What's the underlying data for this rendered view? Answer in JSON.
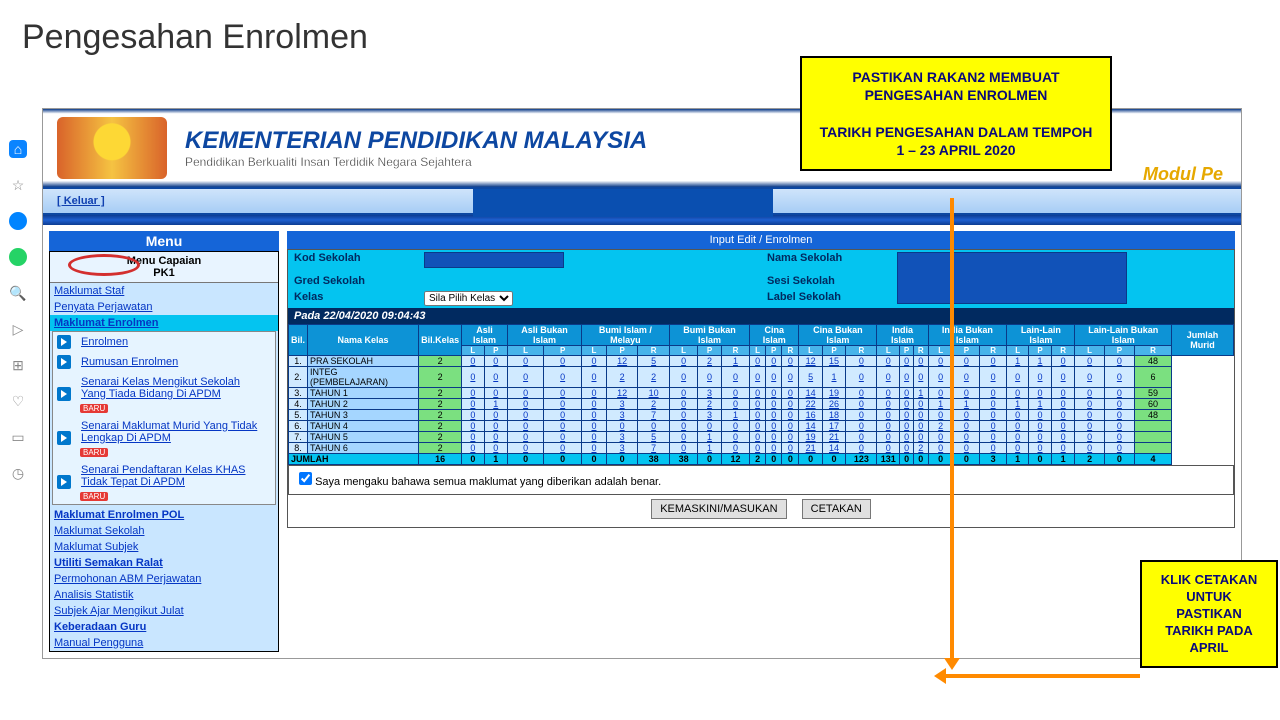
{
  "slide_title": "Pengesahan Enrolmen",
  "banner": {
    "title": "KEMENTERIAN PENDIDIKAN MALAYSIA",
    "subtitle": "Pendidikan Berkualiti Insan Terdidik Negara Sejahtera",
    "module": "Modul Pe"
  },
  "topbar": {
    "keluar": "[ Keluar ]"
  },
  "menu": {
    "title": "Menu",
    "caption": "Menu Capaian\nPK1",
    "items": [
      "Maklumat Staf",
      "Penyata Perjawatan"
    ],
    "group_enrolmen": "Maklumat Enrolmen",
    "sub_enrolmen": [
      "Enrolmen",
      "Rumusan Enrolmen",
      "Senarai Kelas Mengikut Sekolah Yang Tiada Bidang Di APDM",
      "Senarai Maklumat Murid Yang Tidak Lengkap Di APDM",
      "Senarai Pendaftaran Kelas KHAS Tidak Tepat Di APDM"
    ],
    "baru": "BARU",
    "group_pol": [
      "Maklumat Enrolmen POL",
      "Maklumat Sekolah",
      "Maklumat Subjek",
      "Utiliti Semakan Ralat",
      "Permohonan ABM Perjawatan",
      "Analisis Statistik",
      "Subjek Ajar Mengikut Julat",
      "Keberadaan Guru",
      "Manual Pengguna"
    ]
  },
  "panel": {
    "title": "Input Edit / Enrolmen",
    "labels": {
      "kod": "Kod Sekolah",
      "gred": "Gred Sekolah",
      "kelas": "Kelas",
      "kelas_opt": "Sila Pilih Kelas",
      "nama": "Nama Sekolah",
      "sesi": "Sesi Sekolah",
      "label": "Label Sekolah"
    },
    "timestamp": "Pada 22/04/2020 09:04:43",
    "headers": {
      "bil": "Bil.",
      "nama_kelas": "Nama Kelas",
      "bil_kelas": "Bil.Kelas",
      "jumlah": "Jumlah Murid",
      "groups": [
        "Asli Islam",
        "Asli Bukan Islam",
        "Bumi Islam / Melayu",
        "Bumi Bukan Islam",
        "Cina Islam",
        "Cina Bukan Islam",
        "India Islam",
        "India Bukan Islam",
        "Lain-Lain Islam",
        "Lain-Lain Bukan Islam"
      ],
      "sub_lpr": [
        "L",
        "P",
        "R"
      ],
      "sub_lp": [
        "L",
        "P"
      ]
    },
    "rows": [
      {
        "n": "1.",
        "name": "PRA SEKOLAH",
        "bk": "2",
        "c": [
          "0",
          "0",
          "0",
          "0",
          "0",
          "12",
          "5",
          "0",
          "2",
          "1",
          "0",
          "0",
          "0",
          "12",
          "15",
          "0",
          "0",
          "0",
          "0",
          "0",
          "0",
          "0",
          "1",
          "1",
          "0",
          "0",
          "0"
        ],
        "tot": "48"
      },
      {
        "n": "2.",
        "name": "INTEG (PEMBELAJARAN)",
        "bk": "2",
        "c": [
          "0",
          "0",
          "0",
          "0",
          "0",
          "2",
          "2",
          "0",
          "0",
          "0",
          "0",
          "0",
          "0",
          "5",
          "1",
          "0",
          "0",
          "0",
          "0",
          "0",
          "0",
          "0",
          "0",
          "0",
          "0",
          "0",
          "0"
        ],
        "tot": "6"
      },
      {
        "n": "3.",
        "name": "TAHUN 1",
        "bk": "2",
        "c": [
          "0",
          "0",
          "0",
          "0",
          "0",
          "12",
          "10",
          "0",
          "3",
          "0",
          "0",
          "0",
          "0",
          "14",
          "19",
          "0",
          "0",
          "0",
          "1",
          "0",
          "0",
          "0",
          "0",
          "0",
          "0",
          "0",
          "0"
        ],
        "tot": "59"
      },
      {
        "n": "4.",
        "name": "TAHUN 2",
        "bk": "2",
        "c": [
          "0",
          "1",
          "0",
          "0",
          "0",
          "3",
          "2",
          "0",
          "2",
          "0",
          "0",
          "0",
          "0",
          "22",
          "26",
          "0",
          "0",
          "0",
          "0",
          "1",
          "1",
          "0",
          "1",
          "1",
          "0",
          "0",
          "0"
        ],
        "tot": "60"
      },
      {
        "n": "5.",
        "name": "TAHUN 3",
        "bk": "2",
        "c": [
          "0",
          "0",
          "0",
          "0",
          "0",
          "3",
          "7",
          "0",
          "3",
          "1",
          "0",
          "0",
          "0",
          "16",
          "18",
          "0",
          "0",
          "0",
          "0",
          "0",
          "0",
          "0",
          "0",
          "0",
          "0",
          "0",
          "0"
        ],
        "tot": "48"
      },
      {
        "n": "6.",
        "name": "TAHUN 4",
        "bk": "2",
        "c": [
          "0",
          "0",
          "0",
          "0",
          "0",
          "0",
          "0",
          "0",
          "0",
          "0",
          "0",
          "0",
          "0",
          "14",
          "17",
          "0",
          "0",
          "0",
          "0",
          "2",
          "0",
          "0",
          "0",
          "0",
          "0",
          "0",
          "0"
        ],
        "tot": ""
      },
      {
        "n": "7.",
        "name": "TAHUN 5",
        "bk": "2",
        "c": [
          "0",
          "0",
          "0",
          "0",
          "0",
          "3",
          "5",
          "0",
          "1",
          "0",
          "0",
          "0",
          "0",
          "19",
          "21",
          "0",
          "0",
          "0",
          "0",
          "0",
          "0",
          "0",
          "0",
          "0",
          "0",
          "0",
          "0"
        ],
        "tot": ""
      },
      {
        "n": "8.",
        "name": "TAHUN 6",
        "bk": "2",
        "c": [
          "0",
          "0",
          "0",
          "0",
          "0",
          "3",
          "7",
          "0",
          "1",
          "0",
          "0",
          "0",
          "0",
          "21",
          "14",
          "0",
          "0",
          "0",
          "2",
          "0",
          "0",
          "0",
          "0",
          "0",
          "0",
          "0",
          "0"
        ],
        "tot": ""
      }
    ],
    "jumlah_row": {
      "label": "JUMLAH",
      "bk": "16",
      "c": [
        "0",
        "1",
        "0",
        "0",
        "0",
        "0",
        "38",
        "38",
        "0",
        "12",
        "2",
        "0",
        "0",
        "0",
        "0",
        "123",
        "131",
        "0",
        "0",
        "0",
        "0",
        "3",
        "1",
        "0",
        "1",
        "2",
        "0"
      ],
      "tot": "4"
    },
    "confirm": "Saya mengaku bahawa semua maklumat yang diberikan adalah benar.",
    "btn_update": "KEMASKINI/MASUKAN",
    "btn_print": "CETAKAN"
  },
  "callouts": {
    "c1": "PASTIKAN RAKAN2 MEMBUAT PENGESAHAN ENROLMEN\n\nTARIKH PENGESAHAN DALAM TEMPOH 1 – 23 APRIL 2020",
    "c2": "KLIK CETAKAN UNTUK PASTIKAN TARIKH PADA APRIL"
  }
}
